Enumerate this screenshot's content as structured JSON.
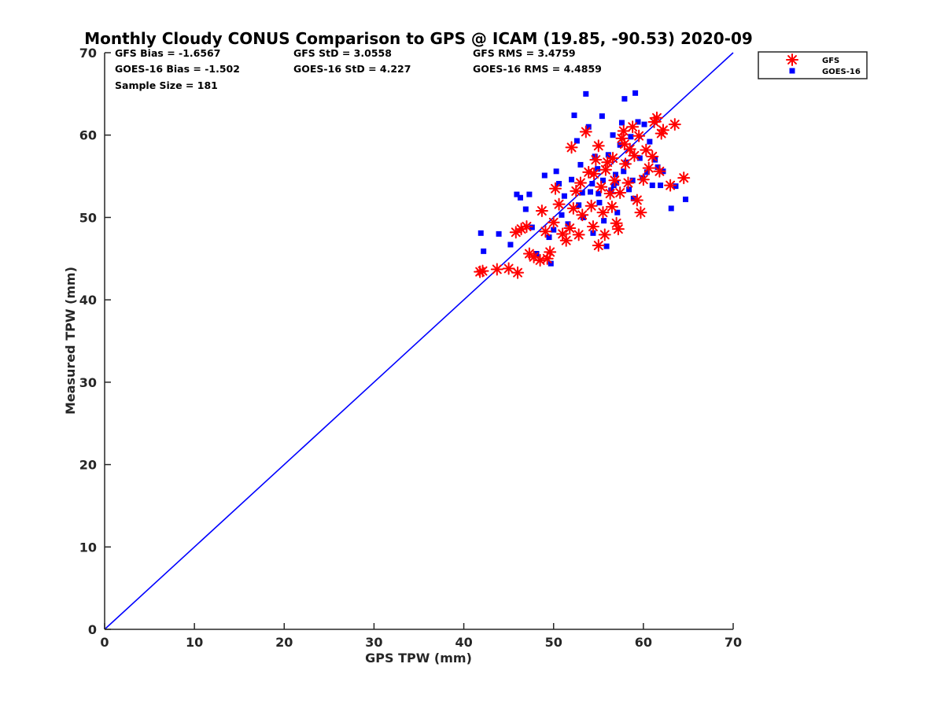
{
  "chart_data": {
    "type": "scatter",
    "title": "Monthly Cloudy CONUS Comparison to GPS @ ICAM (19.85, -90.53) 2020-09",
    "xlabel": "GPS TPW (mm)",
    "ylabel": "Measured TPW (mm)",
    "xlim": [
      0,
      70
    ],
    "ylim": [
      0,
      70
    ],
    "xticks": [
      "0",
      "10",
      "20",
      "30",
      "40",
      "50",
      "60",
      "70"
    ],
    "yticks": [
      "0",
      "10",
      "20",
      "30",
      "40",
      "50",
      "60",
      "70"
    ],
    "legend_position": "outside-top-right",
    "stats": [
      [
        "GFS Bias = -1.6567",
        "GFS StD = 3.0558",
        "GFS RMS = 3.4759"
      ],
      [
        "GOES-16 Bias = -1.502",
        "GOES-16 StD = 4.227",
        "GOES-16 RMS = 4.4859"
      ],
      [
        "Sample Size = 181"
      ]
    ],
    "reference_line": {
      "name": "1:1 line",
      "x": [
        0,
        70
      ],
      "y": [
        0,
        70
      ],
      "color": "#0000ff"
    },
    "series": [
      {
        "name": "GFS",
        "marker": "asterisk",
        "color": "#ff0000",
        "points": [
          [
            41.8,
            43.4
          ],
          [
            42.1,
            43.5
          ],
          [
            43.7,
            43.7
          ],
          [
            45.0,
            43.8
          ],
          [
            46.0,
            43.3
          ],
          [
            45.8,
            48.2
          ],
          [
            46.4,
            48.6
          ],
          [
            47.0,
            48.9
          ],
          [
            47.3,
            45.6
          ],
          [
            47.8,
            45.2
          ],
          [
            48.5,
            44.8
          ],
          [
            49.3,
            45.0
          ],
          [
            49.6,
            45.8
          ],
          [
            48.7,
            50.8
          ],
          [
            49.1,
            48.3
          ],
          [
            50.0,
            49.4
          ],
          [
            50.2,
            53.5
          ],
          [
            50.6,
            51.6
          ],
          [
            51.0,
            48.0
          ],
          [
            51.4,
            47.2
          ],
          [
            51.8,
            48.7
          ],
          [
            52.2,
            51.1
          ],
          [
            52.0,
            58.5
          ],
          [
            52.5,
            53.2
          ],
          [
            52.8,
            47.9
          ],
          [
            53.2,
            50.3
          ],
          [
            53.6,
            60.4
          ],
          [
            53.9,
            55.5
          ],
          [
            54.2,
            51.4
          ],
          [
            54.4,
            48.9
          ],
          [
            54.7,
            57.0
          ],
          [
            55.0,
            58.7
          ],
          [
            55.0,
            46.6
          ],
          [
            55.3,
            53.7
          ],
          [
            55.5,
            50.6
          ],
          [
            55.7,
            47.9
          ],
          [
            56.0,
            56.7
          ],
          [
            56.3,
            52.9
          ],
          [
            56.5,
            51.3
          ],
          [
            56.8,
            54.5
          ],
          [
            57.0,
            49.3
          ],
          [
            57.2,
            48.6
          ],
          [
            57.4,
            53.0
          ],
          [
            57.6,
            59.6
          ],
          [
            57.8,
            60.5
          ],
          [
            58.0,
            56.5
          ],
          [
            58.3,
            54.2
          ],
          [
            58.5,
            58.3
          ],
          [
            58.8,
            61.0
          ],
          [
            59.0,
            57.5
          ],
          [
            59.3,
            52.1
          ],
          [
            59.5,
            59.9
          ],
          [
            59.7,
            50.6
          ],
          [
            60.0,
            54.6
          ],
          [
            60.3,
            58.2
          ],
          [
            60.6,
            56.0
          ],
          [
            61.0,
            57.4
          ],
          [
            61.2,
            61.6
          ],
          [
            61.5,
            62.1
          ],
          [
            61.8,
            55.6
          ],
          [
            62.0,
            60.2
          ],
          [
            62.2,
            60.6
          ],
          [
            63.0,
            53.9
          ],
          [
            63.5,
            61.3
          ],
          [
            64.5,
            54.8
          ],
          [
            53.0,
            54.2
          ],
          [
            54.5,
            55.3
          ],
          [
            55.8,
            55.8
          ],
          [
            56.6,
            57.2
          ],
          [
            57.9,
            58.9
          ]
        ]
      },
      {
        "name": "GOES-16",
        "marker": "square",
        "color": "#0000ff",
        "points": [
          [
            41.9,
            48.1
          ],
          [
            42.2,
            45.9
          ],
          [
            43.9,
            48.0
          ],
          [
            45.2,
            46.7
          ],
          [
            45.9,
            52.8
          ],
          [
            46.3,
            52.4
          ],
          [
            46.9,
            51.0
          ],
          [
            47.3,
            52.8
          ],
          [
            47.6,
            48.8
          ],
          [
            48.1,
            45.6
          ],
          [
            49.0,
            55.1
          ],
          [
            49.5,
            47.6
          ],
          [
            49.7,
            44.4
          ],
          [
            50.0,
            48.5
          ],
          [
            50.3,
            55.6
          ],
          [
            50.6,
            54.1
          ],
          [
            50.9,
            50.3
          ],
          [
            51.2,
            52.6
          ],
          [
            51.6,
            49.2
          ],
          [
            52.0,
            54.6
          ],
          [
            52.3,
            62.4
          ],
          [
            52.6,
            59.3
          ],
          [
            53.0,
            56.4
          ],
          [
            53.3,
            50.0
          ],
          [
            53.6,
            65.0
          ],
          [
            53.9,
            61.0
          ],
          [
            54.1,
            53.1
          ],
          [
            54.4,
            48.1
          ],
          [
            54.6,
            57.4
          ],
          [
            54.9,
            55.9
          ],
          [
            55.1,
            51.8
          ],
          [
            55.4,
            62.3
          ],
          [
            55.6,
            49.6
          ],
          [
            55.9,
            46.5
          ],
          [
            56.1,
            57.6
          ],
          [
            56.4,
            53.3
          ],
          [
            56.6,
            60.0
          ],
          [
            56.9,
            55.2
          ],
          [
            57.1,
            50.6
          ],
          [
            57.4,
            58.8
          ],
          [
            57.6,
            61.5
          ],
          [
            57.9,
            64.4
          ],
          [
            58.1,
            56.7
          ],
          [
            58.4,
            53.4
          ],
          [
            58.6,
            59.8
          ],
          [
            58.9,
            52.3
          ],
          [
            59.1,
            65.1
          ],
          [
            59.4,
            61.6
          ],
          [
            59.6,
            57.2
          ],
          [
            59.9,
            54.8
          ],
          [
            60.1,
            61.3
          ],
          [
            60.4,
            55.5
          ],
          [
            60.7,
            59.2
          ],
          [
            61.0,
            53.9
          ],
          [
            61.3,
            57.0
          ],
          [
            61.6,
            56.1
          ],
          [
            61.9,
            53.9
          ],
          [
            62.2,
            55.6
          ],
          [
            63.1,
            51.1
          ],
          [
            63.6,
            53.8
          ],
          [
            64.7,
            52.2
          ],
          [
            53.2,
            53.0
          ],
          [
            54.3,
            54.1
          ],
          [
            55.5,
            54.5
          ],
          [
            56.7,
            53.9
          ],
          [
            57.8,
            55.6
          ],
          [
            58.8,
            54.5
          ],
          [
            52.8,
            51.5
          ],
          [
            55.0,
            52.9
          ],
          [
            57.0,
            54.2
          ]
        ]
      }
    ]
  }
}
